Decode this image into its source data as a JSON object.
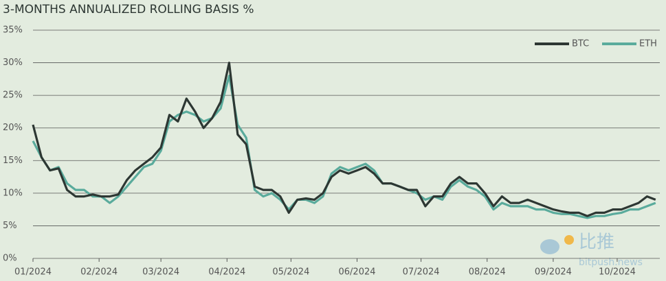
{
  "chart_data": {
    "type": "line",
    "title": "3-MONTHS ANNUALIZED ROLLING BASIS %",
    "x": [
      0,
      4,
      8,
      12,
      16,
      20,
      24,
      28,
      32,
      36,
      40,
      44,
      48,
      52,
      56,
      60,
      64,
      68,
      72,
      76,
      80,
      84,
      88,
      92,
      96,
      100,
      104,
      108,
      112,
      116,
      120,
      124,
      128,
      132,
      136,
      140,
      144,
      148,
      152,
      156,
      160,
      164,
      168,
      172,
      176,
      180,
      184,
      188,
      192,
      196,
      200,
      204,
      208,
      212,
      216,
      220,
      224,
      228,
      232,
      236,
      240,
      244,
      248,
      252,
      256,
      260,
      264,
      268,
      272,
      276,
      280,
      284,
      288,
      292
    ],
    "series": [
      {
        "name": "BTC",
        "color": "#2d3733",
        "values": [
          20.5,
          15.5,
          13.5,
          13.8,
          10.5,
          9.5,
          9.5,
          9.8,
          9.5,
          9.5,
          9.8,
          12,
          13.5,
          14.5,
          15.5,
          17,
          22,
          21,
          24.5,
          22.5,
          20,
          21.5,
          24,
          30,
          19,
          17.5,
          11,
          10.5,
          10.5,
          9.5,
          7,
          9,
          9.2,
          9,
          10,
          12.5,
          13.5,
          13,
          13.5,
          14,
          13,
          11.5,
          11.5,
          11,
          10.5,
          10.5,
          8,
          9.5,
          9.5,
          11.5,
          12.5,
          11.5,
          11.5,
          10,
          8,
          9.5,
          8.5,
          8.5,
          9,
          8.5,
          8,
          7.5,
          7.2,
          7,
          7,
          6.5,
          7,
          7,
          7.5,
          7.5,
          8,
          8.5,
          9.5,
          9
        ]
      },
      {
        "name": "ETH",
        "color": "#5aab9c",
        "values": [
          18,
          15.5,
          13.5,
          14,
          11.5,
          10.5,
          10.5,
          9.5,
          9.5,
          8.5,
          9.5,
          11,
          12.5,
          14,
          14.5,
          16.5,
          21,
          22,
          22.5,
          22,
          21,
          21.5,
          23,
          28,
          20.5,
          18.5,
          10.5,
          9.5,
          10,
          9,
          7.5,
          9,
          9,
          8.5,
          9.5,
          13,
          14,
          13.5,
          14,
          14.5,
          13.5,
          11.5,
          11.5,
          11,
          10.5,
          10,
          9,
          9.5,
          9,
          11,
          12,
          11,
          10.5,
          9.5,
          7.5,
          8.5,
          8,
          8,
          8,
          7.5,
          7.5,
          7,
          6.8,
          6.8,
          6.5,
          6.2,
          6.5,
          6.5,
          6.8,
          7,
          7.5,
          7.5,
          8,
          8.5
        ]
      }
    ],
    "xlim": [
      0,
      294
    ],
    "xticks": [
      {
        "value": 0,
        "label": "01/2024"
      },
      {
        "value": 31,
        "label": "02/2024"
      },
      {
        "value": 60,
        "label": "03/2024"
      },
      {
        "value": 91,
        "label": "04/2024"
      },
      {
        "value": 121,
        "label": "05/2024"
      },
      {
        "value": 152,
        "label": "06/2024"
      },
      {
        "value": 182,
        "label": "07/2024"
      },
      {
        "value": 213,
        "label": "08/2024"
      },
      {
        "value": 244,
        "label": "09/2024"
      },
      {
        "value": 274,
        "label": "10/2024"
      }
    ],
    "ylim": [
      0,
      35
    ],
    "yticks": [
      {
        "value": 0,
        "label": "0%"
      },
      {
        "value": 5,
        "label": "5%"
      },
      {
        "value": 10,
        "label": "10%"
      },
      {
        "value": 15,
        "label": "15%"
      },
      {
        "value": 20,
        "label": "20%"
      },
      {
        "value": 25,
        "label": "25%"
      },
      {
        "value": 30,
        "label": "30%"
      },
      {
        "value": 35,
        "label": "35%"
      }
    ],
    "grid": true,
    "legend": "top-right"
  },
  "watermark": {
    "name": "比推",
    "site": "bitpush.news"
  }
}
